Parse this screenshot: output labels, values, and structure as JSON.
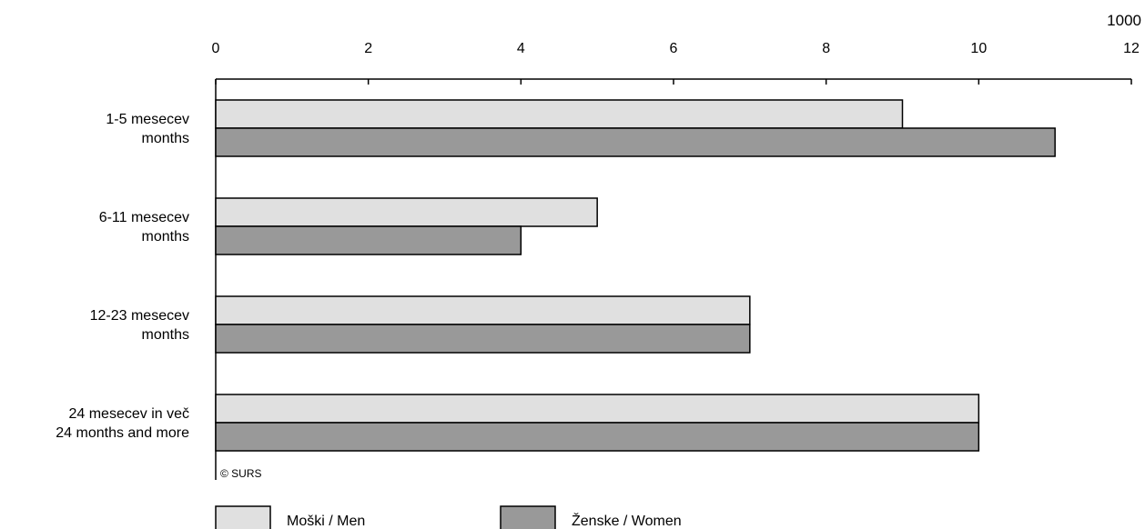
{
  "chart_data": {
    "type": "bar",
    "orientation": "horizontal",
    "unit": "1000",
    "xlim": [
      0,
      12
    ],
    "ticks": [
      "0",
      "2",
      "4",
      "6",
      "8",
      "10",
      "12"
    ],
    "tick_values": [
      0,
      2,
      4,
      6,
      8,
      10,
      12
    ],
    "axis_position": "top",
    "grid": false,
    "categories": [
      [
        "1-5 mesecev",
        "months"
      ],
      [
        "6-11 mesecev",
        "months"
      ],
      [
        "12-23 mesecev",
        "months"
      ],
      [
        "24 mesecev in več",
        "24 months and more"
      ]
    ],
    "series": [
      {
        "name": "Moški / Men",
        "values": [
          9,
          5,
          7,
          10
        ],
        "color": "#e0e0e0"
      },
      {
        "name": "Ženske / Women",
        "values": [
          11,
          4,
          7,
          10
        ],
        "color": "#999999"
      }
    ],
    "legend_position": "bottom-left",
    "source_note": "© SURS"
  }
}
